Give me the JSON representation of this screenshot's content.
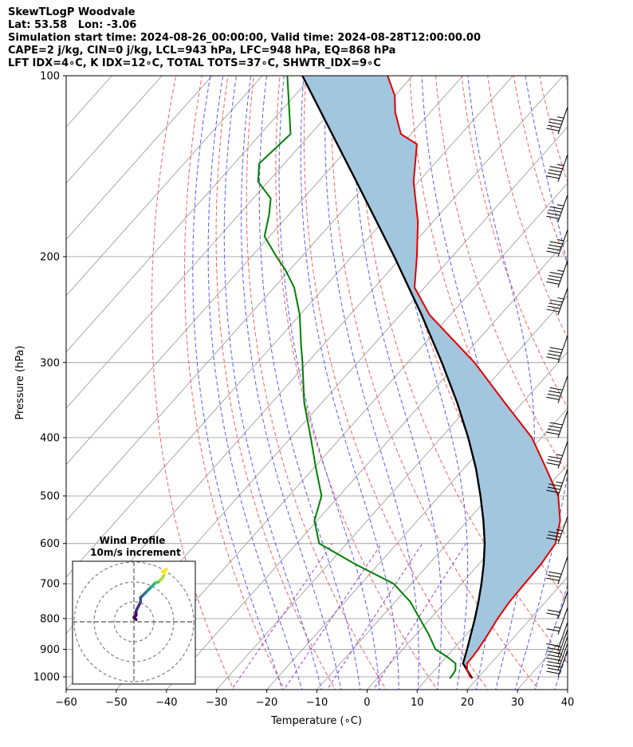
{
  "header": {
    "line1": "SkewTLogP Woodvale",
    "line2": "Lat: 53.58   Lon: -3.06",
    "line3": "Simulation start time: 2024-08-26_00:00:00, Valid time: 2024-08-28T12:00:00.00",
    "line4": "CAPE=2 j/kg, CIN=0 j/kg, LCL=943 hPa, LFC=948 hPa, EQ=868 hPa",
    "line5": "LFT IDX=4∘C, K IDX=12∘C, TOTAL TOTS=37∘C, SHWTR_IDX=9∘C"
  },
  "colors": {
    "temperature": "#e00000",
    "dewpoint": "#008000",
    "parcel": "#000000",
    "cape_fill": "#a3c6df",
    "dry_adiabat": "#f06060",
    "moist_adiabat": "#5a5af0",
    "mixing_ratio": "#9b3fc8",
    "isotherm": "#a0a0a0",
    "isobar": "#a0a0a0"
  },
  "chart_data": {
    "type": "line",
    "title": "",
    "xlabel": "Temperature (∘C)",
    "ylabel": "Pressure (hPa)",
    "xlim": [
      -60,
      40
    ],
    "ylim": [
      1050,
      100
    ],
    "y_scale": "log",
    "grid": true,
    "x_ticks": [
      "−60",
      "−50",
      "−40",
      "−30",
      "−20",
      "−10",
      "0",
      "10",
      "20",
      "30",
      "40"
    ],
    "y_ticks": [
      {
        "value": 100,
        "label": "100"
      },
      {
        "value": 200,
        "label": "200"
      },
      {
        "value": 300,
        "label": "300"
      },
      {
        "value": 400,
        "label": "400"
      },
      {
        "value": 500,
        "label": "500"
      },
      {
        "value": 600,
        "label": "600"
      },
      {
        "value": 700,
        "label": "700"
      },
      {
        "value": 800,
        "label": "800"
      },
      {
        "value": 900,
        "label": "900"
      },
      {
        "value": 1000,
        "label": "1000"
      }
    ],
    "series": [
      {
        "key": "temperature",
        "pressure": [
          1006,
          1000,
          990,
          975,
          950,
          925,
          900,
          850,
          800,
          750,
          700,
          650,
          600,
          550,
          500,
          450,
          400,
          350,
          300,
          250,
          225,
          200,
          175,
          150,
          130,
          125,
          115,
          108,
          100
        ],
        "values": [
          19,
          18.3,
          17.6,
          16.5,
          15.3,
          15.2,
          15.0,
          14.3,
          13.4,
          12.8,
          12.6,
          12.4,
          11.6,
          8.5,
          3.7,
          -3.6,
          -11.9,
          -23.5,
          -36.7,
          -54.1,
          -62,
          -67,
          -73,
          -81,
          -87,
          -92,
          -97,
          -100,
          -105
        ]
      },
      {
        "key": "dewpoint",
        "pressure": [
          1006,
          1000,
          975,
          950,
          925,
          900,
          850,
          800,
          750,
          700,
          650,
          600,
          550,
          500,
          450,
          400,
          350,
          300,
          280,
          250,
          225,
          210,
          200,
          185,
          170,
          160,
          150,
          140,
          125,
          100
        ],
        "values": [
          14.5,
          14.5,
          14.2,
          13.0,
          10.0,
          6.5,
          2.5,
          -2.1,
          -7.0,
          -13.5,
          -24.5,
          -35.5,
          -40.5,
          -43.5,
          -49.5,
          -56.0,
          -63.5,
          -71.0,
          -74.5,
          -80.0,
          -86.0,
          -91.0,
          -95.0,
          -101.0,
          -104.0,
          -106.5,
          -112.0,
          -115.0,
          -114.0,
          -125.0
        ]
      },
      {
        "key": "parcel",
        "pressure": [
          1006,
          950,
          900,
          850,
          800,
          750,
          700,
          650,
          600,
          550,
          500,
          450,
          400,
          350,
          300,
          250,
          200,
          150,
          100
        ],
        "values": [
          19,
          14.5,
          12.8,
          10.9,
          8.9,
          6.6,
          4.0,
          1.0,
          -2.5,
          -6.8,
          -11.8,
          -17.6,
          -24.6,
          -33.0,
          -43.2,
          -55.7,
          -71.5,
          -92.4,
          -122.0
        ]
      }
    ],
    "wind_barbs": {
      "pressure": [
        1000,
        975,
        950,
        925,
        900,
        850,
        800,
        700,
        600,
        500,
        450,
        400,
        350,
        300,
        250,
        225,
        200,
        175,
        150,
        125
      ],
      "speed_kt": [
        25,
        25,
        25,
        25,
        10,
        15,
        20,
        30,
        35,
        35,
        35,
        40,
        40,
        40,
        45,
        45,
        45,
        45,
        45,
        45
      ],
      "direction_deg": [
        250,
        250,
        250,
        250,
        250,
        250,
        250,
        240,
        240,
        240,
        240,
        240,
        240,
        240,
        240,
        240,
        240,
        240,
        240,
        240
      ]
    },
    "hodograph": {
      "title": "Wind Profile",
      "subtitle": "10m/s increment",
      "u": [
        1,
        0,
        1,
        1,
        2,
        3,
        3,
        4,
        5,
        6,
        7,
        8,
        9,
        10,
        11,
        12,
        13,
        14,
        13,
        15
      ],
      "v": [
        1,
        2,
        3,
        5,
        7,
        9,
        11,
        12,
        13,
        14,
        15,
        16,
        17,
        18,
        18,
        19,
        20,
        22,
        23,
        24
      ],
      "ring_spacing": 10,
      "colormap": "viridis"
    }
  }
}
